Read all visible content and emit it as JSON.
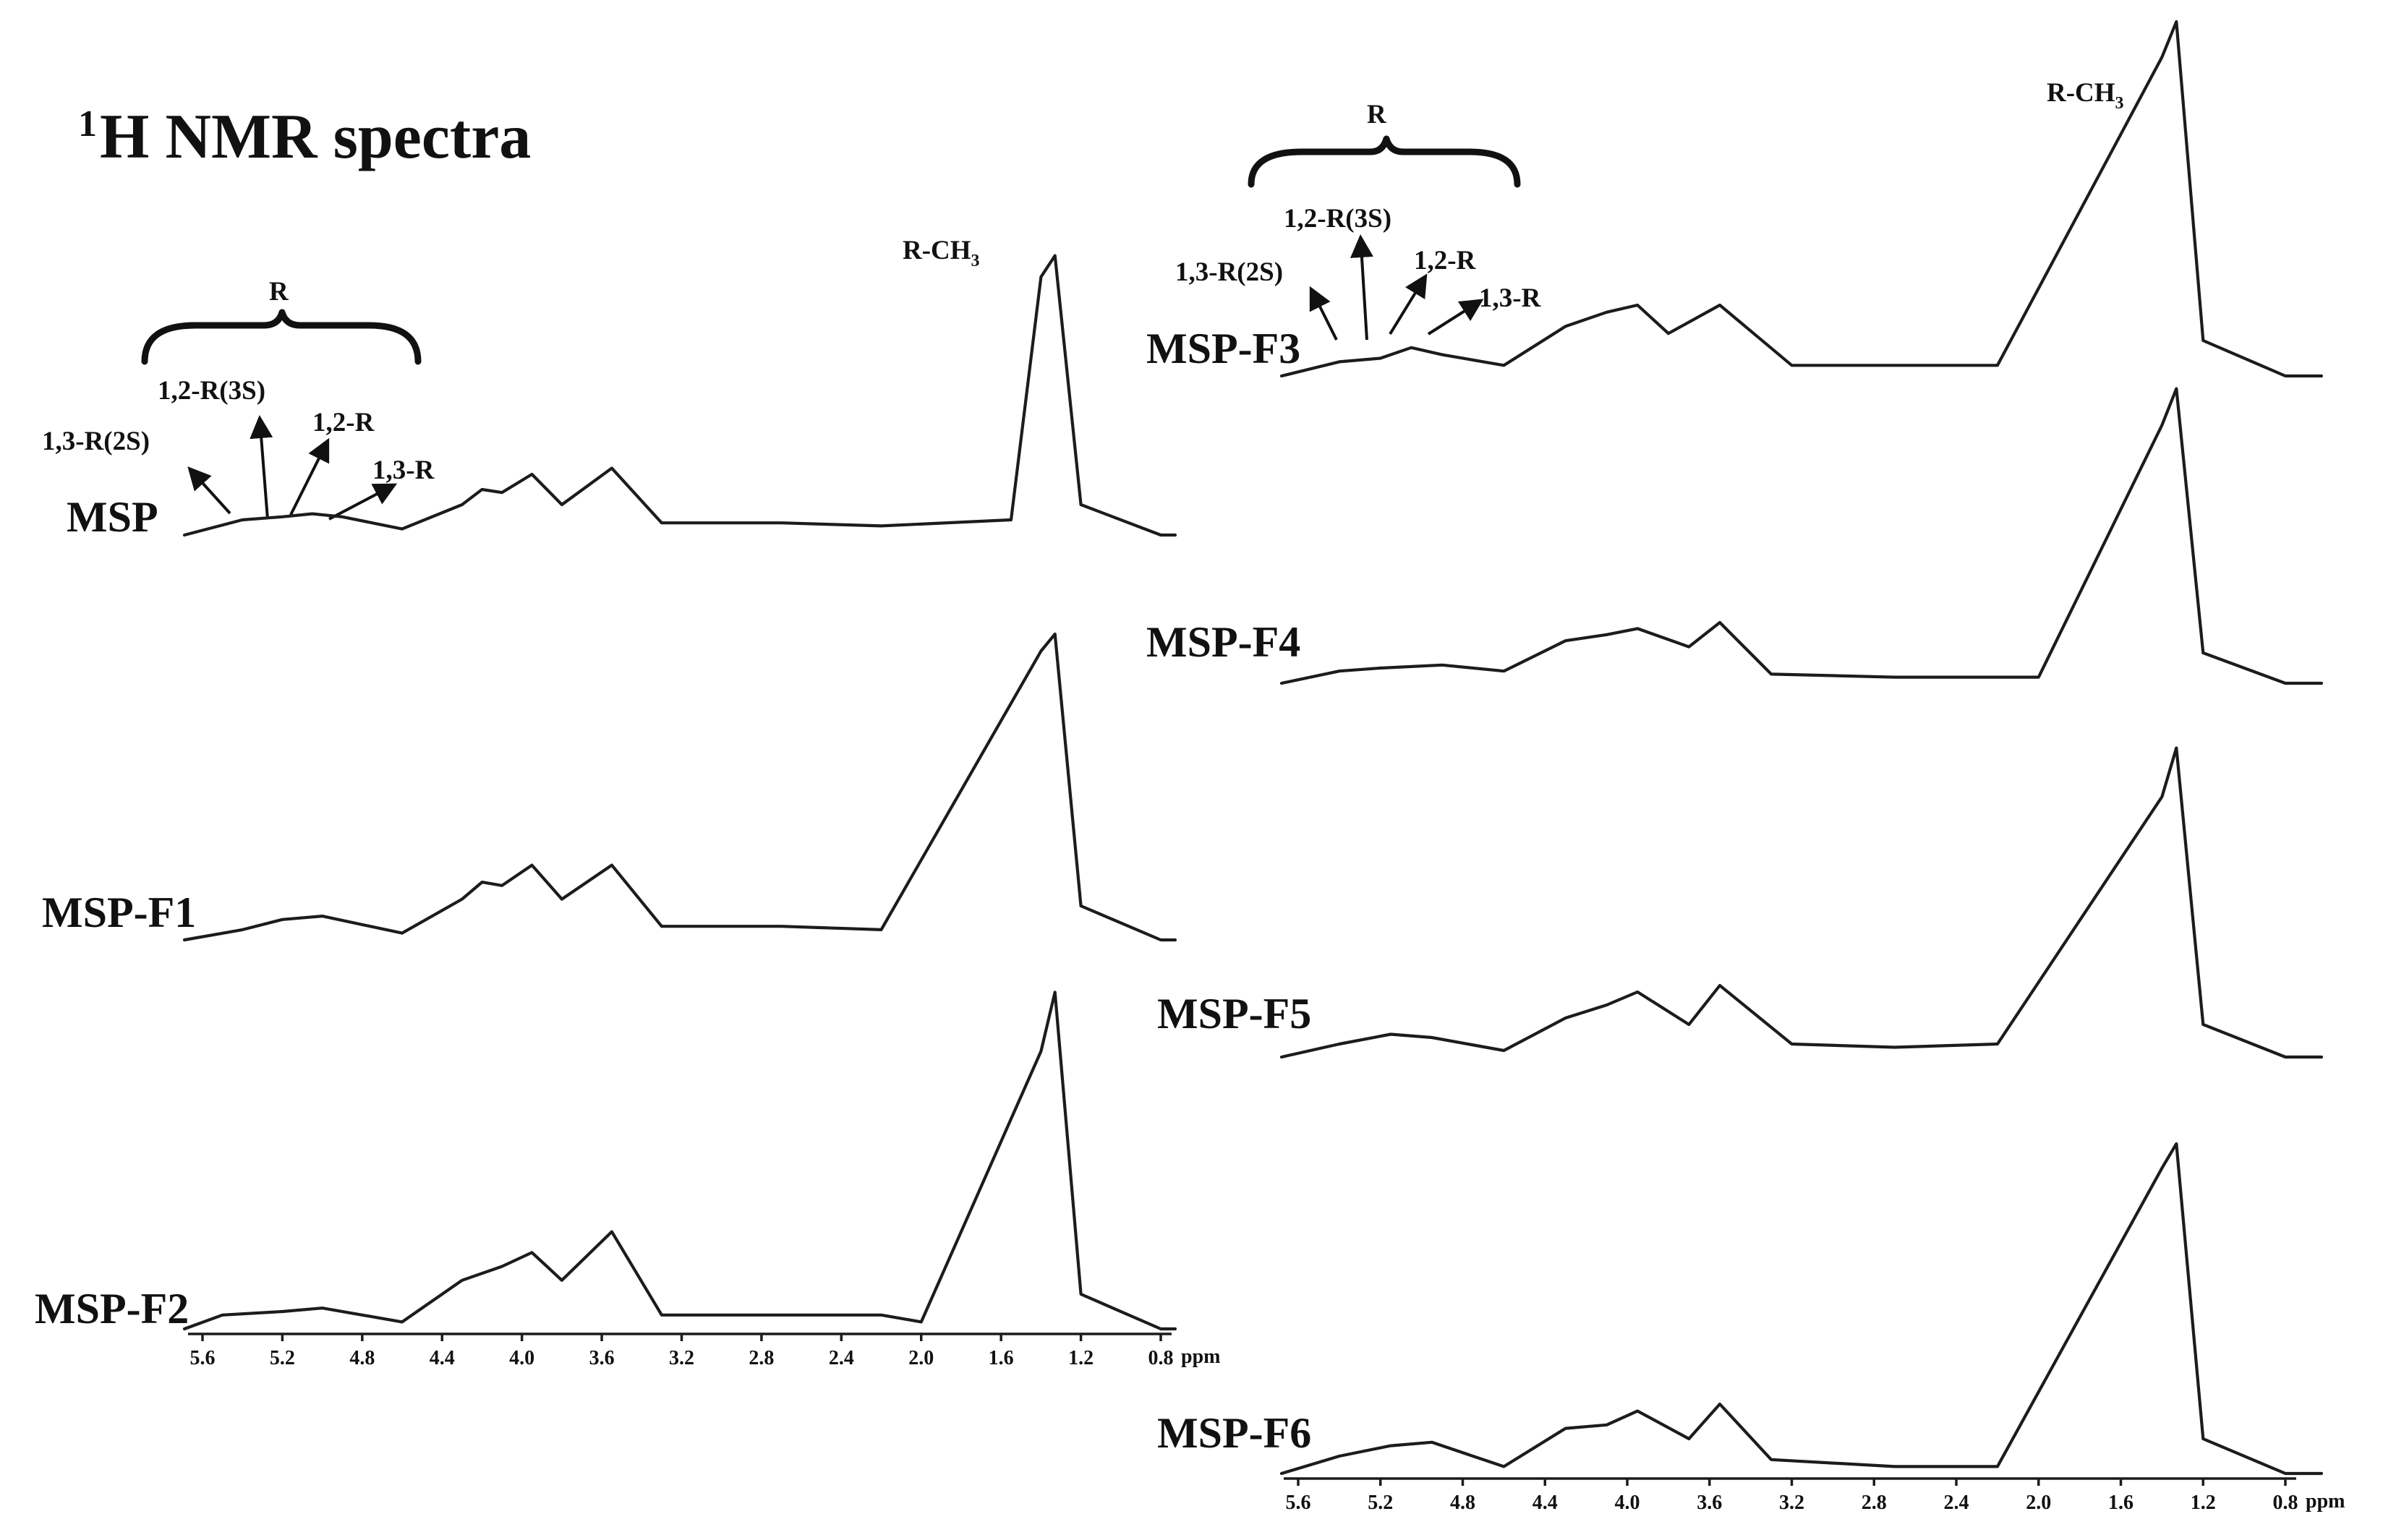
{
  "title": {
    "sup": "1",
    "main": "H NMR spectra"
  },
  "x_unit": "ppm",
  "peak_label": {
    "main": "R-CH",
    "sub": "3"
  },
  "region_label": "R",
  "sub_annotations": [
    "1,3-R(2S)",
    "1,2-R(3S)",
    "1,2-R",
    "1,3-R"
  ],
  "x_ticks": [
    "5.6",
    "5.2",
    "4.8",
    "4.4",
    "4.0",
    "3.6",
    "3.2",
    "2.8",
    "2.4",
    "2.0",
    "1.6",
    "1.2",
    "0.8"
  ],
  "colors": {
    "trace": "#1c1c1c",
    "text": "#111111",
    "background": "#ffffff"
  },
  "chart_data": {
    "type": "line",
    "title": "1H NMR spectra",
    "xlabel": "ppm",
    "ylabel": "",
    "xlim": [
      5.7,
      0.7
    ],
    "x_reversed": true,
    "grid": false,
    "series": [
      {
        "name": "MSP",
        "points": [
          [
            5.4,
            0.05
          ],
          [
            5.2,
            0.06
          ],
          [
            5.05,
            0.07
          ],
          [
            4.9,
            0.06
          ],
          [
            4.6,
            0.02
          ],
          [
            4.3,
            0.1
          ],
          [
            4.2,
            0.15
          ],
          [
            4.1,
            0.14
          ],
          [
            3.95,
            0.2
          ],
          [
            3.8,
            0.1
          ],
          [
            3.55,
            0.22
          ],
          [
            3.3,
            0.04
          ],
          [
            2.7,
            0.04
          ],
          [
            2.2,
            0.03
          ],
          [
            1.55,
            0.05
          ],
          [
            1.4,
            0.85
          ],
          [
            1.33,
            0.92
          ],
          [
            1.2,
            0.1
          ],
          [
            0.8,
            0.0
          ]
        ]
      },
      {
        "name": "MSP-F1",
        "points": [
          [
            5.4,
            0.03
          ],
          [
            5.2,
            0.06
          ],
          [
            5.0,
            0.07
          ],
          [
            4.6,
            0.02
          ],
          [
            4.3,
            0.12
          ],
          [
            4.2,
            0.17
          ],
          [
            4.1,
            0.16
          ],
          [
            3.95,
            0.22
          ],
          [
            3.8,
            0.12
          ],
          [
            3.55,
            0.22
          ],
          [
            3.3,
            0.04
          ],
          [
            2.7,
            0.04
          ],
          [
            2.2,
            0.03
          ],
          [
            1.4,
            0.85
          ],
          [
            1.33,
            0.9
          ],
          [
            1.2,
            0.1
          ],
          [
            0.8,
            0.0
          ]
        ]
      },
      {
        "name": "MSP-F2",
        "points": [
          [
            5.5,
            0.04
          ],
          [
            5.2,
            0.05
          ],
          [
            5.0,
            0.06
          ],
          [
            4.6,
            0.02
          ],
          [
            4.3,
            0.14
          ],
          [
            4.1,
            0.18
          ],
          [
            3.95,
            0.22
          ],
          [
            3.8,
            0.14
          ],
          [
            3.55,
            0.28
          ],
          [
            3.3,
            0.04
          ],
          [
            2.2,
            0.04
          ],
          [
            2.0,
            0.02
          ],
          [
            1.4,
            0.8
          ],
          [
            1.33,
            0.97
          ],
          [
            1.2,
            0.1
          ],
          [
            0.8,
            0.0
          ]
        ]
      },
      {
        "name": "MSP-F3",
        "points": [
          [
            5.4,
            0.04
          ],
          [
            5.2,
            0.05
          ],
          [
            5.05,
            0.08
          ],
          [
            4.9,
            0.06
          ],
          [
            4.6,
            0.03
          ],
          [
            4.3,
            0.14
          ],
          [
            4.1,
            0.18
          ],
          [
            3.95,
            0.2
          ],
          [
            3.8,
            0.12
          ],
          [
            3.55,
            0.2
          ],
          [
            3.2,
            0.03
          ],
          [
            2.65,
            0.03
          ],
          [
            2.2,
            0.03
          ],
          [
            1.4,
            0.9
          ],
          [
            1.33,
            1.0
          ],
          [
            1.2,
            0.1
          ],
          [
            0.8,
            0.0
          ]
        ]
      },
      {
        "name": "MSP-F4",
        "points": [
          [
            5.4,
            0.04
          ],
          [
            5.2,
            0.05
          ],
          [
            4.9,
            0.06
          ],
          [
            4.6,
            0.04
          ],
          [
            4.3,
            0.14
          ],
          [
            4.1,
            0.16
          ],
          [
            3.95,
            0.18
          ],
          [
            3.7,
            0.12
          ],
          [
            3.55,
            0.2
          ],
          [
            3.3,
            0.03
          ],
          [
            2.7,
            0.02
          ],
          [
            2.2,
            0.02
          ],
          [
            2.0,
            0.02
          ],
          [
            1.4,
            0.85
          ],
          [
            1.33,
            0.97
          ],
          [
            1.2,
            0.1
          ],
          [
            0.8,
            0.0
          ]
        ]
      },
      {
        "name": "MSP-F5",
        "points": [
          [
            5.4,
            0.04
          ],
          [
            5.15,
            0.07
          ],
          [
            4.95,
            0.06
          ],
          [
            4.6,
            0.02
          ],
          [
            4.3,
            0.12
          ],
          [
            4.1,
            0.16
          ],
          [
            3.95,
            0.2
          ],
          [
            3.7,
            0.1
          ],
          [
            3.55,
            0.22
          ],
          [
            3.2,
            0.04
          ],
          [
            2.7,
            0.03
          ],
          [
            2.2,
            0.04
          ],
          [
            1.4,
            0.8
          ],
          [
            1.33,
            0.95
          ],
          [
            1.2,
            0.1
          ],
          [
            0.8,
            0.0
          ]
        ]
      },
      {
        "name": "MSP-F6",
        "points": [
          [
            5.4,
            0.05
          ],
          [
            5.15,
            0.08
          ],
          [
            4.95,
            0.09
          ],
          [
            4.6,
            0.02
          ],
          [
            4.3,
            0.13
          ],
          [
            4.1,
            0.14
          ],
          [
            3.95,
            0.18
          ],
          [
            3.7,
            0.1
          ],
          [
            3.55,
            0.2
          ],
          [
            3.3,
            0.04
          ],
          [
            2.7,
            0.02
          ],
          [
            2.2,
            0.02
          ],
          [
            1.4,
            0.88
          ],
          [
            1.33,
            0.95
          ],
          [
            1.2,
            0.1
          ],
          [
            0.8,
            0.0
          ]
        ]
      }
    ]
  }
}
